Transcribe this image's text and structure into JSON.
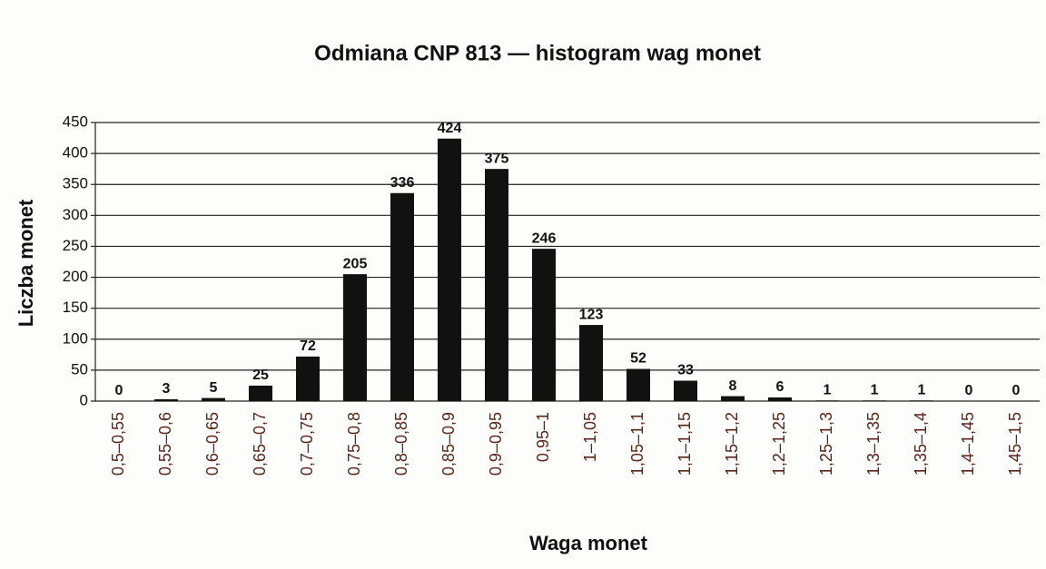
{
  "chart_data": {
    "type": "bar",
    "title": "Odmiana CNP 813 — histogram wag monet",
    "x_label": "Waga monet",
    "y_label": "Liczba monet",
    "categories": [
      "0,5–0,55",
      "0,55–0,6",
      "0,6–0,65",
      "0,65–0,7",
      "0,7–0,75",
      "0,75–0,8",
      "0,8–0,85",
      "0,85–0,9",
      "0,9–0,95",
      "0,95–1",
      "1–1,05",
      "1,05–1,1",
      "1,1–1,15",
      "1,15–1,2",
      "1,2–1,25",
      "1,25–1,3",
      "1,3–1,35",
      "1,35–1,4",
      "1,4–1,45",
      "1,45–1,5"
    ],
    "values": [
      0,
      3,
      5,
      25,
      72,
      205,
      336,
      424,
      375,
      246,
      123,
      52,
      33,
      8,
      6,
      1,
      1,
      1,
      0,
      0
    ],
    "color": "#111111",
    "ylim": [
      0,
      450
    ],
    "yticks": [
      0,
      50,
      100,
      150,
      200,
      250,
      300,
      350,
      400,
      450
    ],
    "grid": true
  }
}
